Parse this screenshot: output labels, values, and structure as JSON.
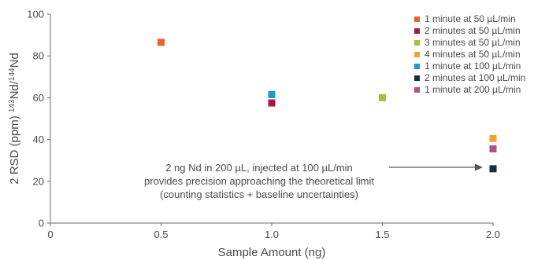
{
  "chart_data": {
    "type": "scatter",
    "title": "",
    "xlabel": "Sample Amount (ng)",
    "ylabel_main": "2 RSD (ppm) ",
    "ylabel_isotope1": "143",
    "ylabel_elem1": "Nd/",
    "ylabel_isotope2": "144",
    "ylabel_elem2": "Nd",
    "xlim": [
      0,
      2.0
    ],
    "ylim": [
      0,
      100
    ],
    "xticks": [
      "0",
      "0.5",
      "1.0",
      "1.5",
      "2.0"
    ],
    "xtick_values": [
      0,
      0.5,
      1.0,
      1.5,
      2.0
    ],
    "yticks": [
      "0",
      "20",
      "40",
      "60",
      "80",
      "100"
    ],
    "ytick_values": [
      0,
      20,
      40,
      60,
      80,
      100
    ],
    "grid": false,
    "legend_position": "top-right",
    "series": [
      {
        "name": "1 minute at 50 µL/min",
        "color": "#e8632b",
        "points": [
          {
            "x": 0.5,
            "y": 86.5
          }
        ]
      },
      {
        "name": "2 minutes at 50 µL/min",
        "color": "#a3193f",
        "points": [
          {
            "x": 1.0,
            "y": 57.5
          }
        ]
      },
      {
        "name": "3 minutes at 50 µL/min",
        "color": "#a6c136",
        "points": [
          {
            "x": 1.5,
            "y": 60
          }
        ]
      },
      {
        "name": "4 minutes at 50 µL/min",
        "color": "#f0a22e",
        "points": [
          {
            "x": 2.0,
            "y": 40.5
          }
        ]
      },
      {
        "name": "1 minute at 100 µL/min",
        "color": "#1c9cc0",
        "points": [
          {
            "x": 1.0,
            "y": 61.5
          }
        ]
      },
      {
        "name": "2 minutes at 100 µL/min",
        "color": "#1a2b45",
        "points": [
          {
            "x": 2.0,
            "y": 26
          }
        ]
      },
      {
        "name": "1 minute at 200 µL/min",
        "color": "#a6568c",
        "points": [
          {
            "x": 2.0,
            "y": 35.5
          }
        ]
      }
    ],
    "annotation": {
      "lines": [
        "2 ng Nd in 200 µL, injected at 100 µL/min",
        "provides precision approaching the theoretical limit",
        "(counting statistics + baseline uncertainties)"
      ],
      "arrow_target": {
        "x": 2.0,
        "y": 26
      }
    }
  }
}
